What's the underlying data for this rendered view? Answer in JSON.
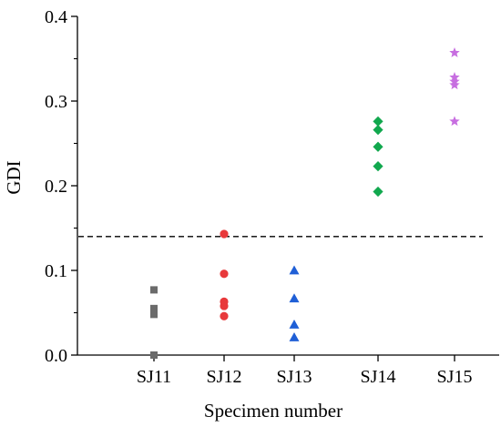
{
  "chart_data": {
    "type": "scatter",
    "title": "",
    "xlabel": "Specimen number",
    "ylabel": "GDI",
    "categories": [
      "SJ11",
      "SJ12",
      "SJ13",
      "SJ14",
      "SJ15"
    ],
    "ylim": [
      0.0,
      0.4
    ],
    "yticks": [
      "0.0",
      "0.1",
      "0.2",
      "0.3",
      "0.4"
    ],
    "grid": false,
    "legend": "none",
    "threshold": {
      "value": 0.14,
      "style": "dashed",
      "color": "#000000"
    },
    "series": [
      {
        "category": "SJ11",
        "marker": "square",
        "color": "#6b6b6b",
        "values": [
          0.0,
          0.048,
          0.055,
          0.077
        ]
      },
      {
        "category": "SJ12",
        "marker": "circle",
        "color": "#e8393b",
        "values": [
          0.046,
          0.058,
          0.063,
          0.096,
          0.143
        ]
      },
      {
        "category": "SJ13",
        "marker": "triangle",
        "color": "#1f5fd6",
        "values": [
          0.021,
          0.036,
          0.067,
          0.1
        ]
      },
      {
        "category": "SJ14",
        "marker": "diamond",
        "color": "#11a84e",
        "values": [
          0.193,
          0.223,
          0.246,
          0.266,
          0.276
        ]
      },
      {
        "category": "SJ15",
        "marker": "star",
        "color": "#c76ee0",
        "values": [
          0.276,
          0.319,
          0.323,
          0.328,
          0.357
        ]
      }
    ]
  }
}
